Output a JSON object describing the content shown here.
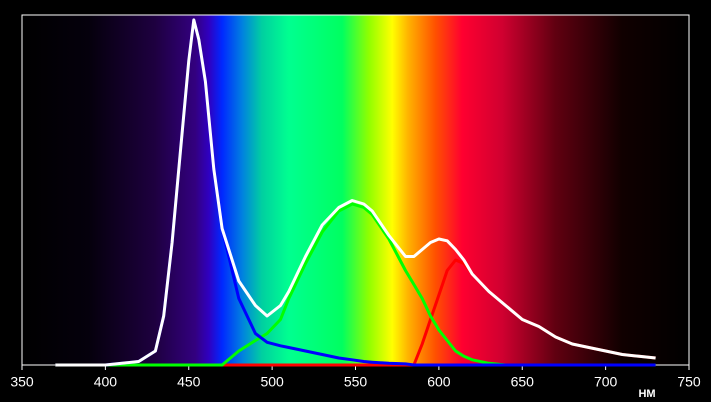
{
  "chart_data": {
    "type": "line",
    "x_label": "НМ",
    "x": [
      370,
      380,
      390,
      400,
      410,
      420,
      430,
      435,
      440,
      445,
      450,
      453,
      456,
      460,
      465,
      470,
      480,
      490,
      497,
      505,
      510,
      520,
      530,
      540,
      548,
      555,
      560,
      570,
      580,
      585,
      590,
      595,
      600,
      605,
      610,
      615,
      620,
      630,
      640,
      650,
      660,
      670,
      680,
      690,
      700,
      710,
      720,
      730
    ],
    "series": [
      {
        "color": "#ffffff",
        "values": [
          0,
          0,
          0,
          0,
          0.005,
          0.01,
          0.04,
          0.14,
          0.35,
          0.61,
          0.87,
          0.986,
          0.93,
          0.81,
          0.56,
          0.39,
          0.24,
          0.17,
          0.14,
          0.17,
          0.21,
          0.31,
          0.4,
          0.45,
          0.47,
          0.46,
          0.44,
          0.37,
          0.31,
          0.31,
          0.33,
          0.35,
          0.36,
          0.355,
          0.33,
          0.3,
          0.26,
          0.21,
          0.17,
          0.13,
          0.11,
          0.08,
          0.06,
          0.05,
          0.04,
          0.03,
          0.025,
          0.02
        ]
      },
      {
        "color": "#0000ff",
        "values": [
          0,
          0,
          0,
          0,
          0.005,
          0.01,
          0.04,
          0.14,
          0.35,
          0.61,
          0.87,
          0.986,
          0.93,
          0.81,
          0.56,
          0.39,
          0.19,
          0.09,
          0.065,
          0.055,
          0.05,
          0.04,
          0.03,
          0.02,
          0.015,
          0.01,
          0.008,
          0.005,
          0.003,
          0,
          0,
          0,
          0,
          0,
          0,
          0,
          0,
          0,
          0,
          0,
          0,
          0,
          0,
          0,
          0,
          0,
          0,
          0
        ]
      },
      {
        "color": "#00ff00",
        "values": [
          0,
          0,
          0,
          0,
          0,
          0,
          0,
          0,
          0,
          0,
          0,
          0,
          0,
          0,
          0,
          0,
          0.04,
          0.07,
          0.09,
          0.13,
          0.19,
          0.29,
          0.38,
          0.44,
          0.46,
          0.45,
          0.43,
          0.36,
          0.27,
          0.23,
          0.19,
          0.14,
          0.1,
          0.07,
          0.04,
          0.025,
          0.015,
          0.005,
          0,
          0,
          0,
          0,
          0,
          0,
          0,
          0,
          0,
          0
        ]
      },
      {
        "color": "#ff0000",
        "values": [
          0,
          0,
          0,
          0,
          0,
          0,
          0,
          0,
          0,
          0,
          0,
          0,
          0,
          0,
          0,
          0,
          0,
          0,
          0,
          0,
          0,
          0,
          0,
          0,
          0,
          0,
          0,
          0,
          0,
          0,
          0.06,
          0.13,
          0.2,
          0.27,
          0.3,
          0.29,
          0.26,
          0.21,
          0.17,
          0.13,
          0.11,
          0.08,
          0.06,
          0.05,
          0.04,
          0.03,
          0.025,
          0.02
        ]
      }
    ],
    "xlim": [
      350,
      750
    ],
    "xticks": [
      350,
      400,
      450,
      500,
      550,
      600,
      650,
      700,
      750
    ],
    "ylim": [
      0,
      1
    ]
  }
}
